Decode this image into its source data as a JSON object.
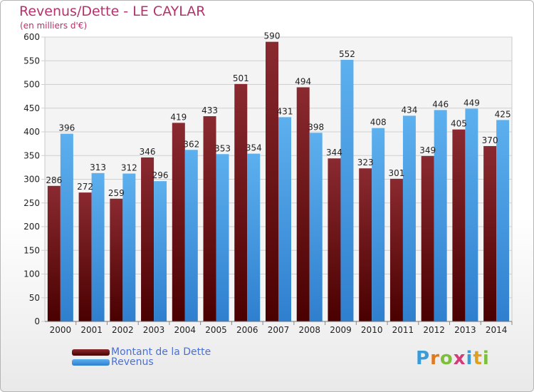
{
  "chart_data": {
    "type": "bar",
    "title": "Revenus/Dette - LE CAYLAR",
    "subtitle": "(en milliers d'€)",
    "categories": [
      "2000",
      "2001",
      "2002",
      "2003",
      "2004",
      "2005",
      "2006",
      "2007",
      "2008",
      "2009",
      "2010",
      "2011",
      "2012",
      "2013",
      "2014"
    ],
    "series": [
      {
        "name": "Montant de la Dette",
        "color": "#7b1e22",
        "values": [
          286,
          272,
          259,
          346,
          419,
          433,
          501,
          590,
          494,
          344,
          323,
          301,
          349,
          405,
          370
        ]
      },
      {
        "name": "Revenus",
        "color": "#4da3e6",
        "values": [
          396,
          313,
          312,
          296,
          362,
          353,
          354,
          431,
          398,
          552,
          408,
          434,
          446,
          449,
          425
        ]
      }
    ],
    "ylim": [
      0,
      600
    ],
    "yticks": [
      0,
      50,
      100,
      150,
      200,
      250,
      300,
      350,
      400,
      450,
      500,
      550,
      600
    ],
    "grid": true,
    "legend_position": "bottom-left"
  },
  "logo": {
    "letters": [
      "P",
      "r",
      "o",
      "x",
      "i",
      "t",
      "i"
    ],
    "colors": [
      "#3a9bd9",
      "#e07a1f",
      "#7cbf3a",
      "#d43a7a",
      "#3a9bd9",
      "#e0a01f",
      "#7cbf3a"
    ]
  }
}
